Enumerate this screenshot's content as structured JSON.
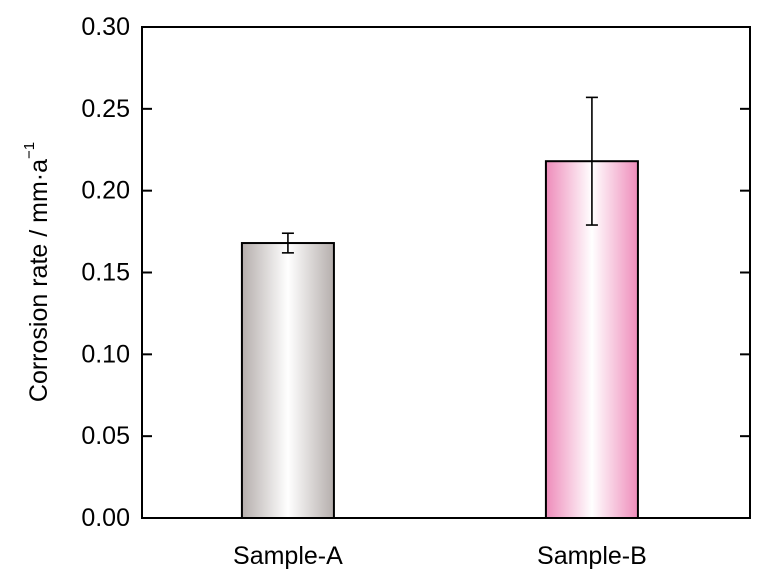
{
  "chart_data": {
    "type": "bar",
    "categories": [
      "Sample-A",
      "Sample-B"
    ],
    "values": [
      0.168,
      0.218
    ],
    "error": [
      0.006,
      0.039
    ],
    "xlabel": "",
    "ylabel": "Corrosion rate / mm·a",
    "ylabel_superscript": "−1",
    "ylim": [
      0,
      0.3
    ],
    "yticks": [
      "0.00",
      "0.05",
      "0.10",
      "0.15",
      "0.20",
      "0.25",
      "0.30"
    ],
    "grid": false,
    "colors": {
      "bar_a_edge": "#b5aeac",
      "bar_b_edge": "#ee8cba",
      "bar_center": "#ffffff",
      "axis": "#000000"
    }
  }
}
